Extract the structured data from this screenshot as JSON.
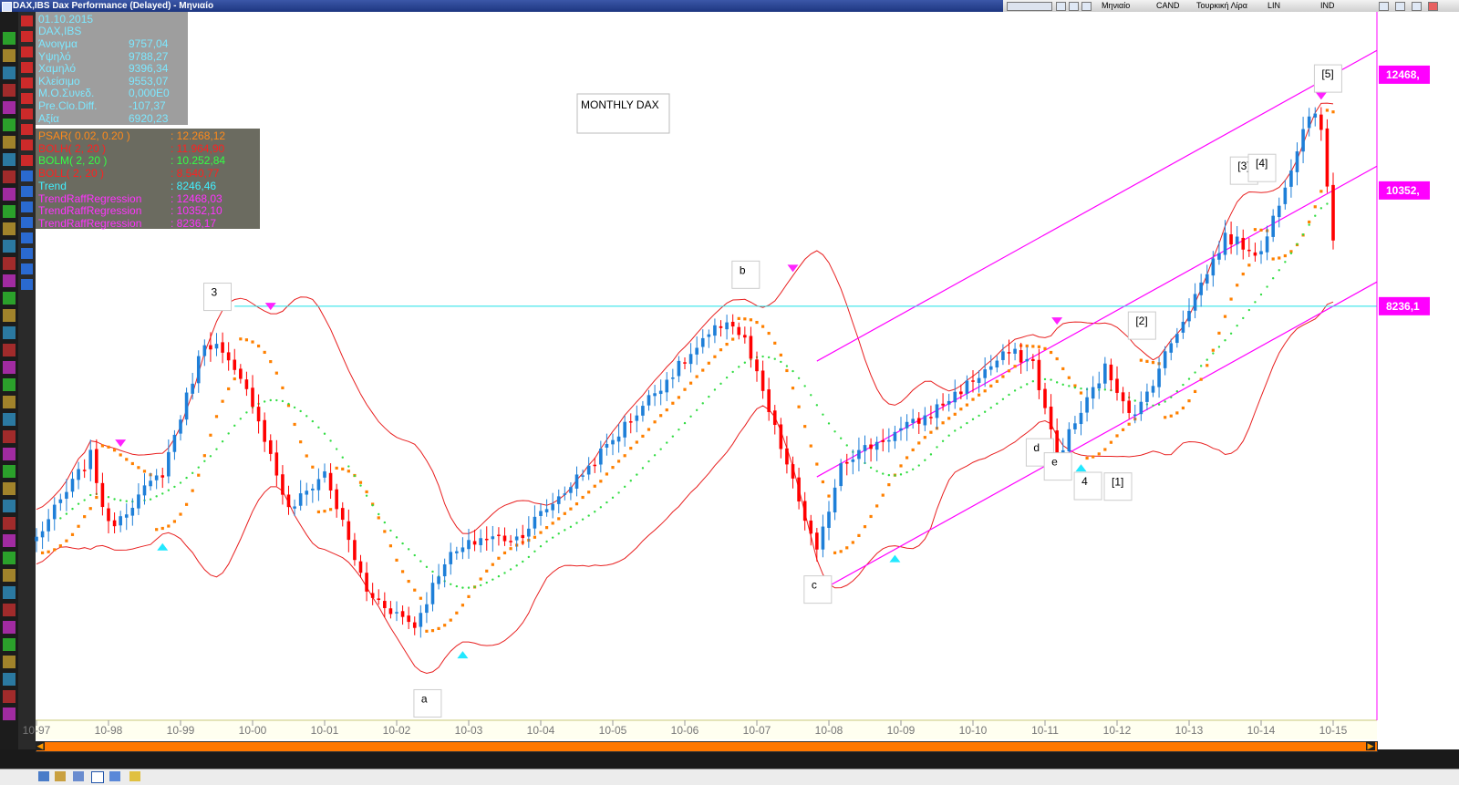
{
  "window": {
    "title": "DAX,IBS Dax Performance (Delayed) - Μηνιαίο",
    "toolbar_labels": [
      "Μηνιαίο",
      "CAND",
      "Τουρκική Λίρα",
      "LIN",
      "IND"
    ]
  },
  "colors": {
    "bg": "#ffffff",
    "up_candle": "#1e7fd8",
    "down_candle": "#ff0000",
    "psar": "#ff8000",
    "bollinger": "#e82020",
    "middle": "#33dd44",
    "trend": "#1ce0e8",
    "regression": "#ff00ff"
  },
  "info_panel": {
    "date": "01.10.2015",
    "symbol": "DAX,IBS",
    "rows": [
      {
        "label": "Άνοιγμα",
        "value": "9757,04"
      },
      {
        "label": "Υψηλό",
        "value": "9788,27"
      },
      {
        "label": "Χαμηλό",
        "value": "9396,34"
      },
      {
        "label": "Κλείσιμο",
        "value": "9553,07"
      },
      {
        "label": "Μ.Ο.Συνεδ.",
        "value": "0,000E0"
      },
      {
        "label": "Pre.Clo.Diff.",
        "value": "-107,37"
      },
      {
        "label": "Αξία",
        "value": "6920,23"
      }
    ]
  },
  "indicator_panel": {
    "rows": [
      {
        "label": "PSAR( 0.02, 0.20 )",
        "value": ": 12.268,12",
        "color": "#ff8a1a"
      },
      {
        "label": "BOLH( 2, 20 )",
        "value": ": 11.964,90",
        "color": "#ff2020"
      },
      {
        "label": "BOLM( 2, 20 )",
        "value": ": 10.252,84",
        "color": "#33ff44"
      },
      {
        "label": "BOLL( 2, 20 )",
        "value": ": 8.540,77",
        "color": "#ff2020"
      },
      {
        "label": "Trend",
        "value": ": 8246,46",
        "color": "#40f0ff"
      },
      {
        "label": "TrendRaffRegression",
        "value": ": 12468,03",
        "color": "#ff33ff"
      },
      {
        "label": "TrendRaffRegression",
        "value": ": 10352,10",
        "color": "#ff33ff"
      },
      {
        "label": "TrendRaffRegression",
        "value": ": 8236,17",
        "color": "#ff33ff"
      }
    ]
  },
  "annotation_title": "MONTHLY DAX",
  "wave_labels": [
    {
      "text": "3",
      "month": 30
    },
    {
      "text": "a",
      "month": 65
    },
    {
      "text": "b",
      "month": 118
    },
    {
      "text": "c",
      "month": 130
    },
    {
      "text": "d",
      "month": 167
    },
    {
      "text": "e",
      "month": 170
    },
    {
      "text": "4",
      "month": 175
    },
    {
      "text": "[1]",
      "month": 180
    },
    {
      "text": "[2]",
      "month": 184
    },
    {
      "text": "[3]",
      "month": 201
    },
    {
      "text": "[4]",
      "month": 204
    },
    {
      "text": "[5]",
      "month": 215
    }
  ],
  "right_labels": [
    "12468,",
    "10352,",
    "8236,1"
  ],
  "chart_data": {
    "type": "candlestick",
    "title": "",
    "x_ticks": [
      "10-97",
      "10-98",
      "10-99",
      "10-00",
      "10-01",
      "10-02",
      "10-03",
      "10-04",
      "10-05",
      "10-06",
      "10-07",
      "10-08",
      "10-09",
      "10-10",
      "10-11",
      "10-12",
      "10-13",
      "10-14",
      "10-15"
    ],
    "x_range": [
      "1997-10",
      "2015-10"
    ],
    "price_range": [
      2000,
      13500
    ],
    "anchors": [
      {
        "month": 0,
        "close": 4000
      },
      {
        "month": 9,
        "close": 5500
      },
      {
        "month": 12,
        "close": 4200
      },
      {
        "month": 21,
        "close": 5200
      },
      {
        "month": 28,
        "close": 7600
      },
      {
        "month": 30,
        "close": 7500
      },
      {
        "month": 36,
        "close": 6500
      },
      {
        "month": 42,
        "close": 4500
      },
      {
        "month": 48,
        "close": 5200
      },
      {
        "month": 55,
        "close": 3000
      },
      {
        "month": 63,
        "close": 2400
      },
      {
        "month": 68,
        "close": 3600
      },
      {
        "month": 74,
        "close": 4000
      },
      {
        "month": 80,
        "close": 4000
      },
      {
        "month": 92,
        "close": 5300
      },
      {
        "month": 104,
        "close": 6800
      },
      {
        "month": 115,
        "close": 8000
      },
      {
        "month": 118,
        "close": 7600
      },
      {
        "month": 126,
        "close": 5000
      },
      {
        "month": 130,
        "close": 3700
      },
      {
        "month": 134,
        "close": 5400
      },
      {
        "month": 148,
        "close": 6200
      },
      {
        "month": 162,
        "close": 7400
      },
      {
        "month": 166,
        "close": 7200
      },
      {
        "month": 170,
        "close": 5500
      },
      {
        "month": 175,
        "close": 6500
      },
      {
        "month": 178,
        "close": 7100
      },
      {
        "month": 183,
        "close": 6200
      },
      {
        "month": 190,
        "close": 7800
      },
      {
        "month": 198,
        "close": 9500
      },
      {
        "month": 204,
        "close": 9200
      },
      {
        "month": 212,
        "close": 11800
      },
      {
        "month": 214,
        "close": 11500
      },
      {
        "month": 216,
        "close": 9500
      }
    ],
    "trend_level": 8236,
    "regression_channel": {
      "month_start": 130,
      "month_end": 216,
      "lower_start": 3000,
      "lower_end": 8236,
      "middle_end": 10352,
      "upper_end": 12468
    },
    "psar_params": "0.02, 0.20",
    "bollinger_params": "2, 20"
  }
}
